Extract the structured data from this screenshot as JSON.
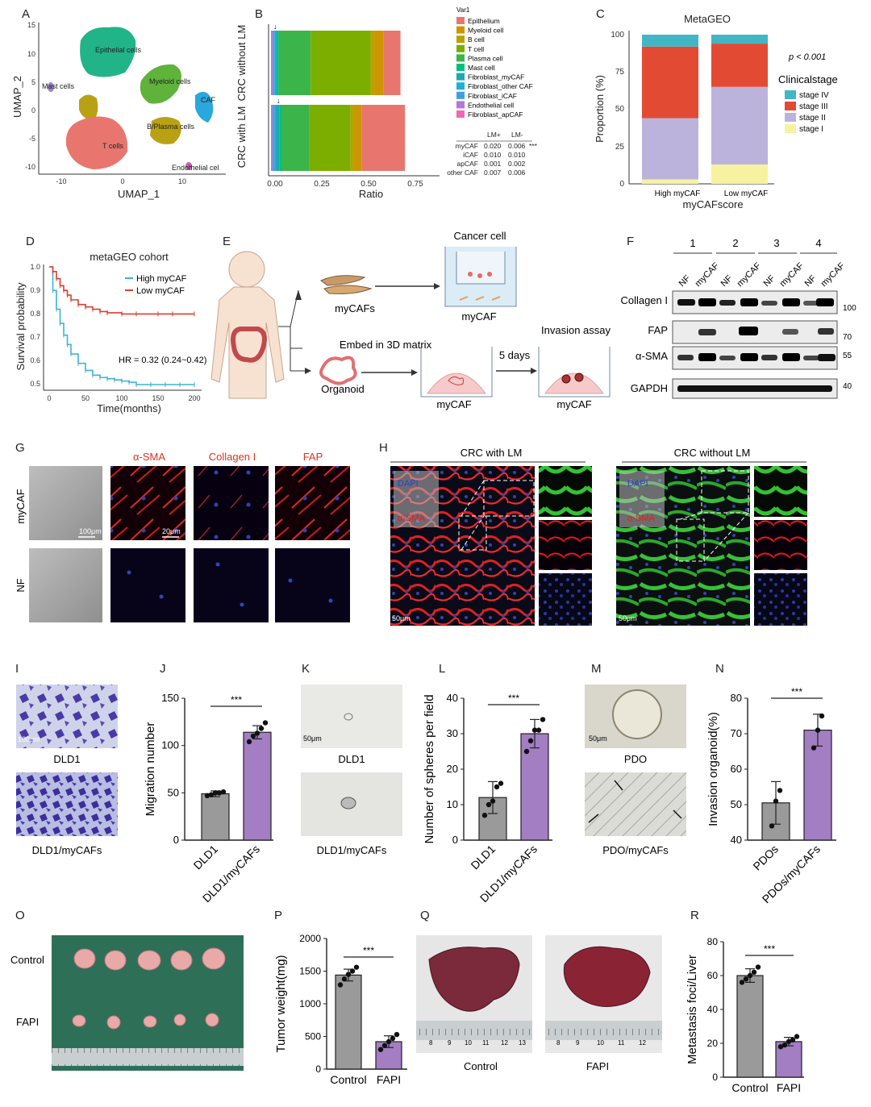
{
  "panel_letters": [
    "A",
    "B",
    "C",
    "D",
    "E",
    "F",
    "G",
    "H",
    "I",
    "J",
    "K",
    "L",
    "M",
    "N",
    "O",
    "P",
    "Q",
    "R"
  ],
  "colors": {
    "epithelium": "#e8766f",
    "myeloid": "#cd9600",
    "bcell": "#b8a300",
    "tcell": "#7cae00",
    "plasma": "#3bb44a",
    "mast": "#00bf7d",
    "fib_my": "#1fa8b0",
    "fib_other": "#1fb0d8",
    "fib_icaf": "#3fa0e0",
    "endothelial": "#b279d8",
    "apcaf": "#ef67b5",
    "stage4": "#41b6c4",
    "stage3": "#e34a33",
    "stage2": "#bcb3dc",
    "stage1": "#f6f2a0",
    "km_high": "#3cb4d4",
    "km_low": "#d9402f",
    "bar_gray": "#9a9a9a",
    "bar_purple": "#a37ec3"
  },
  "A": {
    "xlabel": "UMAP_1",
    "ylabel": "UMAP_2",
    "xticks": [
      "-10",
      "0",
      "10"
    ],
    "yticks": [
      "15",
      "10",
      "5",
      "0",
      "-5",
      "-10"
    ],
    "clusters": [
      "Epithelial cells",
      "Myeloid cells",
      "CAF",
      "B/Plasma cells",
      "T cells",
      "Mast cells",
      "Endothelial cel"
    ]
  },
  "B": {
    "legend_title": "Var1",
    "ylabels": [
      "CRC without LM",
      "CRC with LM"
    ],
    "xlabel": "Ratio",
    "xticks": [
      "0.00",
      "0.25",
      "0.50",
      "0.75"
    ],
    "table_head": [
      "LM+",
      "LM-"
    ],
    "table_rows": [
      [
        "myCAF",
        "0.020",
        "0.006",
        "***"
      ],
      [
        "iCAF",
        "0.010",
        "0.010",
        ""
      ],
      [
        "apCAF",
        "0.001",
        "0.002",
        ""
      ],
      [
        "other CAF",
        "0.007",
        "0.006",
        ""
      ]
    ]
  },
  "C": {
    "title": "MetaGEO",
    "ylabel": "Proportion (%)",
    "xlabel": "myCAFscore",
    "pvalue": "p < 0.001",
    "legend_title": "Clinicalstage",
    "yticks": [
      "100",
      "75",
      "50",
      "25",
      "0"
    ]
  },
  "D": {
    "title": "metaGEO cohort",
    "ylabel": "Survival probability",
    "xlabel": "Time(months)",
    "hr": "HR = 0.32 (0.24~0.42)",
    "xticks": [
      "0",
      "50",
      "100",
      "150",
      "200"
    ],
    "yticks": [
      "1.0",
      "0.9",
      "0.8",
      "0.7",
      "0.6",
      "0.5"
    ]
  },
  "E": {
    "cancer_cell": "Cancer cell",
    "mycafs": "myCAFs",
    "mycaf1": "myCAF",
    "organoid": "Organoid",
    "embed": "Embed in 3D matrix",
    "five_days": "5 days",
    "invasion": "Invasion assay",
    "mycaf2": "myCAF",
    "mycaf3": "myCAF"
  },
  "F": {
    "lanes": [
      "1",
      "2",
      "3",
      "4"
    ],
    "lane_labels": [
      "NF",
      "myCAF",
      "NF",
      "myCAF",
      "NF",
      "myCAF",
      "NF",
      "myCAF"
    ],
    "rows": [
      "Collagen I",
      "FAP",
      "α-SMA",
      "GAPDH"
    ],
    "markers": [
      "100",
      "70",
      "55",
      "40"
    ]
  },
  "G": {
    "cols": [
      "α-SMA",
      "Collagen I",
      "FAP"
    ],
    "rows": [
      "myCAF",
      "NF"
    ],
    "scale1": "100μm",
    "scale2": "20μm"
  },
  "H": {
    "left_title": "CRC with LM",
    "right_title": "CRC without LM",
    "stains": [
      "DAPI",
      "",
      "α-SMA"
    ],
    "scale": "50μm"
  },
  "I": {
    "labels": [
      "DLD1",
      "DLD1/myCAFs"
    ],
    "scale": "100μm"
  },
  "J": {
    "ylabel": "Migration number",
    "sig": "***",
    "yticks": [
      "150",
      "100",
      "50",
      "0"
    ]
  },
  "K": {
    "labels": [
      "DLD1",
      "DLD1/myCAFs"
    ],
    "scale": "50μm"
  },
  "L": {
    "ylabel": "Number of spheres per field",
    "sig": "***",
    "yticks": [
      "40",
      "30",
      "20",
      "10",
      "0"
    ]
  },
  "M": {
    "labels": [
      "PDO",
      "PDO/myCAFs"
    ],
    "scale": "50μm"
  },
  "N": {
    "ylabel": "Invasion organoid(%)",
    "sig": "***",
    "yticks": [
      "80",
      "70",
      "60",
      "50",
      "40"
    ]
  },
  "O": {
    "labels": [
      "Control",
      "FAPI"
    ]
  },
  "P": {
    "ylabel": "Tumor weight(mg)",
    "sig": "***",
    "yticks": [
      "2000",
      "1500",
      "1000",
      "500",
      "0"
    ]
  },
  "Q": {
    "labels": [
      "Control",
      "FAPI"
    ],
    "ruler1": [
      "8",
      "9",
      "10",
      "11",
      "12",
      "13"
    ],
    "ruler2": [
      "8",
      "9",
      "10",
      "11",
      "12"
    ]
  },
  "R": {
    "ylabel": "Metastasis foci/Liver",
    "sig": "***",
    "yticks": [
      "80",
      "60",
      "40",
      "20",
      "0"
    ]
  },
  "chart_data": [
    {
      "panel": "B",
      "type": "bar",
      "orientation": "horizontal-stacked",
      "xlabel": "Ratio",
      "xlim": [
        0,
        1
      ],
      "categories": [
        "CRC without LM",
        "CRC with LM"
      ],
      "series": [
        {
          "name": "Epithelium",
          "values": [
            0.09,
            0.23
          ]
        },
        {
          "name": "Myeloid cell",
          "values": [
            0.05,
            0.04
          ]
        },
        {
          "name": "B cell",
          "values": [
            0.02,
            0.02
          ]
        },
        {
          "name": "T cell",
          "values": [
            0.32,
            0.22
          ]
        },
        {
          "name": "Plasma cell",
          "values": [
            0.17,
            0.15
          ]
        },
        {
          "name": "Mast cell",
          "values": [
            0.01,
            0.01
          ]
        },
        {
          "name": "Fibroblast_myCAF",
          "values": [
            0.006,
            0.02
          ]
        },
        {
          "name": "Fibroblast_other CAF",
          "values": [
            0.006,
            0.007
          ]
        },
        {
          "name": "Fibroblast_iCAF",
          "values": [
            0.01,
            0.01
          ]
        },
        {
          "name": "Endothelial cell",
          "values": [
            0.008,
            0.008
          ]
        },
        {
          "name": "Fibroblast_apCAF",
          "values": [
            0.002,
            0.001
          ]
        }
      ]
    },
    {
      "panel": "C",
      "type": "bar",
      "orientation": "vertical-stacked",
      "title": "MetaGEO",
      "ylabel": "Proportion (%)",
      "xlabel": "myCAFscore",
      "ylim": [
        0,
        100
      ],
      "categories": [
        "High myCAF",
        "Low myCAF"
      ],
      "series": [
        {
          "name": "stage I",
          "values": [
            3,
            13
          ]
        },
        {
          "name": "stage II",
          "values": [
            41,
            52
          ]
        },
        {
          "name": "stage III",
          "values": [
            48,
            29
          ]
        },
        {
          "name": "stage IV",
          "values": [
            8,
            6
          ]
        }
      ]
    },
    {
      "panel": "D",
      "type": "line",
      "title": "metaGEO cohort",
      "xlabel": "Time(months)",
      "ylabel": "Survival probability",
      "xlim": [
        0,
        205
      ],
      "ylim": [
        0.47,
        1.0
      ],
      "series": [
        {
          "name": "High myCAF",
          "x": [
            0,
            5,
            10,
            15,
            20,
            25,
            30,
            40,
            50,
            60,
            70,
            80,
            90,
            100,
            110,
            120,
            140,
            160,
            180,
            200
          ],
          "y": [
            1.0,
            0.9,
            0.82,
            0.76,
            0.71,
            0.67,
            0.63,
            0.59,
            0.56,
            0.54,
            0.53,
            0.525,
            0.52,
            0.515,
            0.51,
            0.5,
            0.5,
            0.5,
            0.5,
            0.5
          ]
        },
        {
          "name": "Low myCAF",
          "x": [
            0,
            5,
            10,
            15,
            20,
            25,
            30,
            40,
            50,
            60,
            70,
            80,
            100,
            120,
            150,
            170,
            200
          ],
          "y": [
            1.0,
            0.98,
            0.95,
            0.92,
            0.9,
            0.88,
            0.86,
            0.84,
            0.83,
            0.82,
            0.81,
            0.805,
            0.8,
            0.8,
            0.8,
            0.8,
            0.8
          ]
        }
      ]
    },
    {
      "panel": "J",
      "type": "bar",
      "categories": [
        "DLD1",
        "DLD1/myCAFs"
      ],
      "values": [
        49,
        114
      ],
      "err": [
        3,
        7
      ],
      "ylim": [
        0,
        150
      ],
      "ylabel": "Migration number",
      "points": [
        [
          47,
          48,
          50,
          50,
          51
        ],
        [
          104,
          110,
          113,
          118,
          124
        ]
      ]
    },
    {
      "panel": "L",
      "type": "bar",
      "categories": [
        "DLD1",
        "DLD1/myCAFs"
      ],
      "values": [
        12,
        30
      ],
      "err": [
        4.5,
        4
      ],
      "ylim": [
        0,
        40
      ],
      "ylabel": "Number of spheres per field",
      "points": [
        [
          7,
          10,
          11,
          15,
          16
        ],
        [
          25,
          28,
          31,
          31,
          34
        ]
      ]
    },
    {
      "panel": "N",
      "type": "bar",
      "categories": [
        "PDOs",
        "PDOs/myCAFs"
      ],
      "values": [
        50.5,
        71
      ],
      "err": [
        6,
        4.5
      ],
      "ylim": [
        40,
        80
      ],
      "ylabel": "Invasion organoid(%)",
      "points": [
        [
          44,
          51,
          54
        ],
        [
          66,
          71,
          75
        ]
      ]
    },
    {
      "panel": "P",
      "type": "bar",
      "categories": [
        "Control",
        "FAPI"
      ],
      "values": [
        1440,
        420
      ],
      "err": [
        90,
        90
      ],
      "ylim": [
        0,
        2000
      ],
      "ylabel": "Tumor weight(mg)",
      "points": [
        [
          1290,
          1380,
          1450,
          1500,
          1560
        ],
        [
          300,
          360,
          420,
          470,
          530
        ]
      ]
    },
    {
      "panel": "R",
      "type": "bar",
      "categories": [
        "Control",
        "FAPI"
      ],
      "values": [
        60,
        21
      ],
      "err": [
        4,
        2.5
      ],
      "ylim": [
        0,
        80
      ],
      "ylabel": "Metastasis foci/Liver",
      "points": [
        [
          56,
          58,
          60,
          62,
          65
        ],
        [
          18,
          19,
          21,
          22,
          24
        ]
      ]
    }
  ]
}
